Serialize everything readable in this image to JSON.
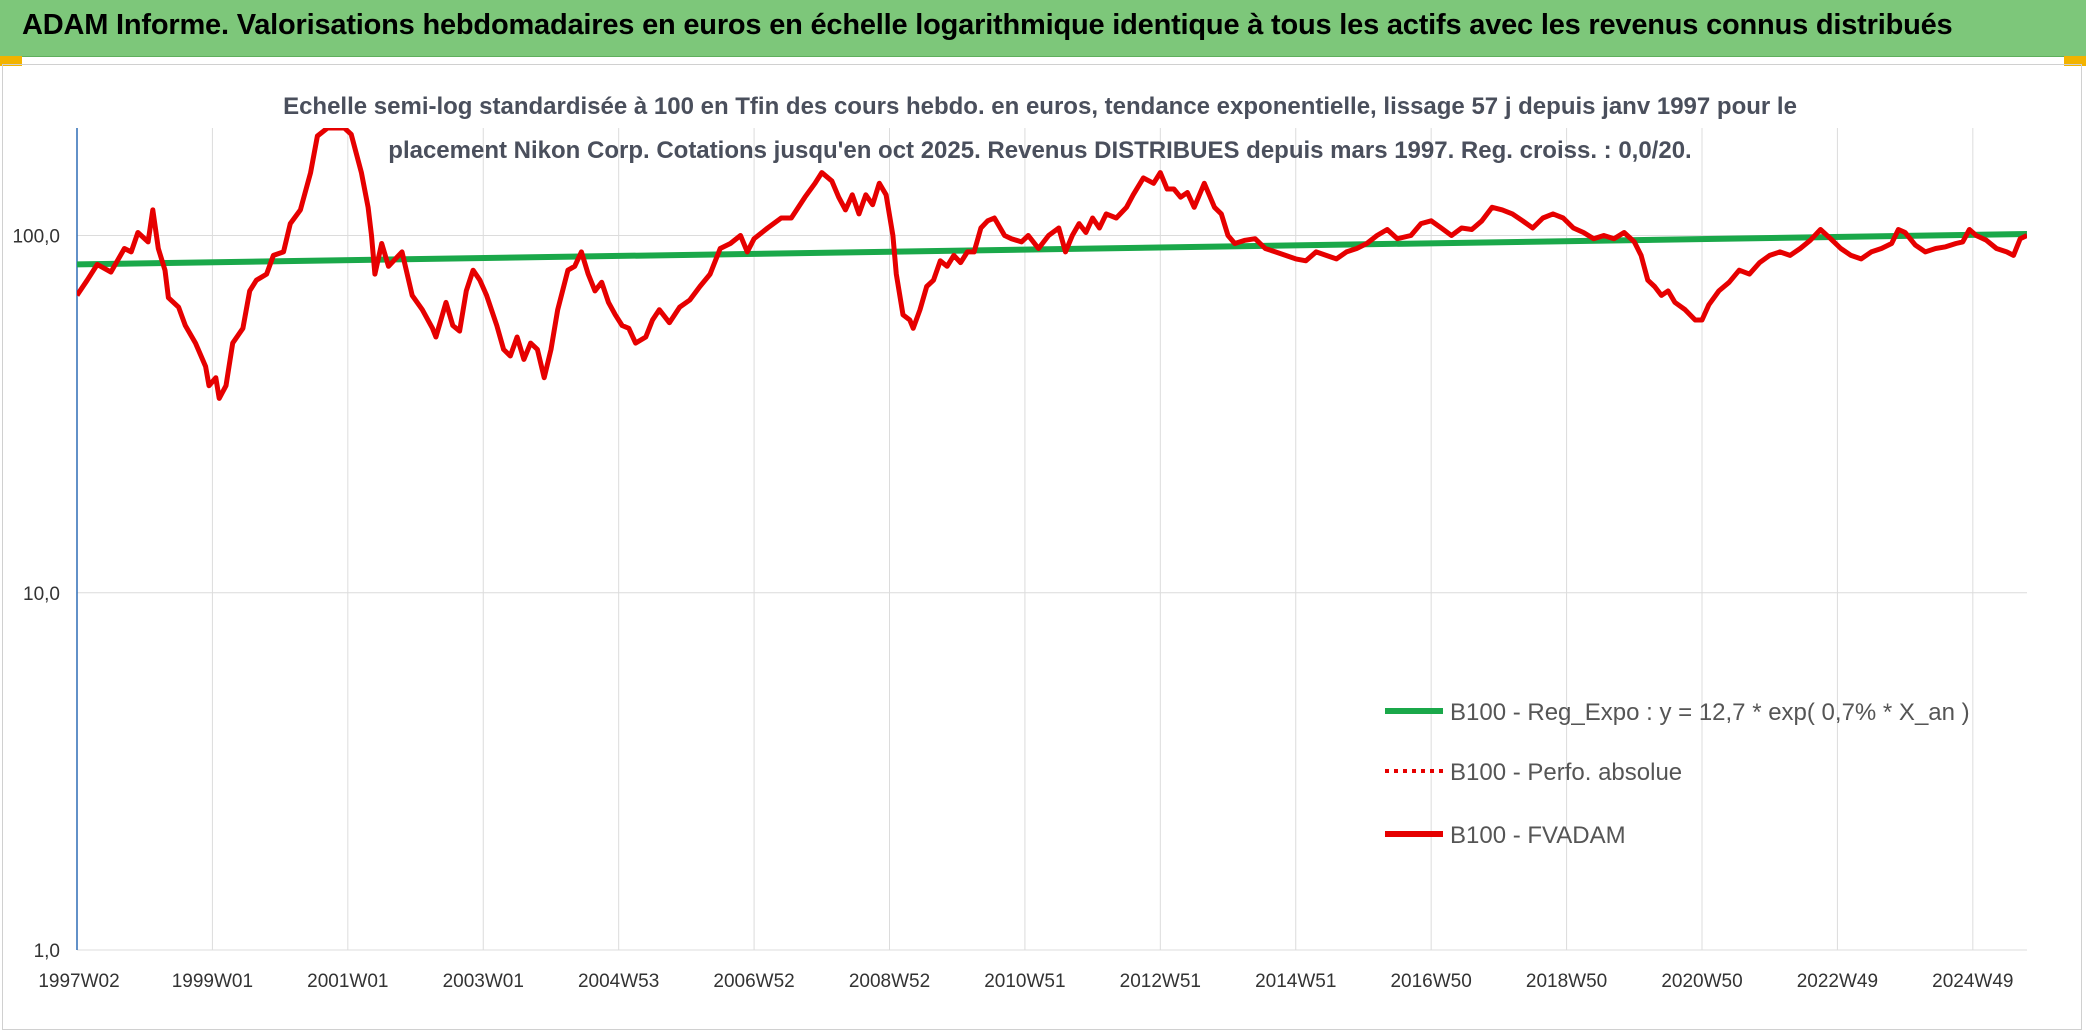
{
  "header": {
    "title": "ADAM Informe. Valorisations hebdomadaires en euros en échelle logarithmique identique à tous les actifs avec les revenus connus distribués"
  },
  "chart_data": {
    "type": "line",
    "title_lines": [
      "Echelle semi-log standardisée à 100 en Tfin des cours hebdo. en euros, tendance exponentielle, lissage 57 j depuis janv 1997 pour le",
      "placement Nikon Corp. Cotations jusqu'en oct 2025. Revenus DISTRIBUES depuis mars 1997. Reg. croiss. : 0,0/20."
    ],
    "y_scale": "log",
    "ylim": [
      1,
      200
    ],
    "y_ticks": [
      1,
      10,
      100
    ],
    "y_tick_labels": [
      "1,0",
      "10,0",
      "100,0"
    ],
    "x_range": [
      1997.0,
      2025.8
    ],
    "x_ticks": [
      {
        "label": "1997W02",
        "x": 1997.0
      },
      {
        "label": "1999W01",
        "x": 1999.0
      },
      {
        "label": "2001W01",
        "x": 2001.0
      },
      {
        "label": "2003W01",
        "x": 2003.0
      },
      {
        "label": "2004W53",
        "x": 2005.0
      },
      {
        "label": "2006W52",
        "x": 2007.0
      },
      {
        "label": "2008W52",
        "x": 2009.0
      },
      {
        "label": "2010W51",
        "x": 2011.0
      },
      {
        "label": "2012W51",
        "x": 2013.0
      },
      {
        "label": "2014W51",
        "x": 2015.0
      },
      {
        "label": "2016W50",
        "x": 2017.0
      },
      {
        "label": "2018W50",
        "x": 2019.0
      },
      {
        "label": "2020W50",
        "x": 2021.0
      },
      {
        "label": "2022W49",
        "x": 2023.0
      },
      {
        "label": "2024W49",
        "x": 2025.0
      }
    ],
    "grid": "vertical and horizontal",
    "legend_position": "bottom-right",
    "series": [
      {
        "name": "B100 - Reg_Expo : y = 12,7 * exp( 0,7% * X_an )",
        "color": "#1aa84a",
        "style": "solid",
        "points": [
          [
            1997.0,
            83
          ],
          [
            2025.8,
            101
          ]
        ]
      },
      {
        "name": "B100 - Perfo. absolue",
        "color": "#e60000",
        "style": "dotted",
        "points": []
      },
      {
        "name": "B100 - FVADAM",
        "color": "#e60000",
        "style": "solid",
        "points": [
          [
            1997.0,
            68
          ],
          [
            1997.15,
            75
          ],
          [
            1997.3,
            83
          ],
          [
            1997.5,
            79
          ],
          [
            1997.7,
            92
          ],
          [
            1997.8,
            90
          ],
          [
            1997.9,
            102
          ],
          [
            1998.05,
            96
          ],
          [
            1998.12,
            118
          ],
          [
            1998.2,
            92
          ],
          [
            1998.3,
            80
          ],
          [
            1998.35,
            67
          ],
          [
            1998.5,
            63
          ],
          [
            1998.6,
            56
          ],
          [
            1998.75,
            50
          ],
          [
            1998.9,
            43
          ],
          [
            1998.95,
            38
          ],
          [
            1999.05,
            40
          ],
          [
            1999.1,
            35
          ],
          [
            1999.2,
            38
          ],
          [
            1999.3,
            50
          ],
          [
            1999.45,
            55
          ],
          [
            1999.55,
            70
          ],
          [
            1999.65,
            75
          ],
          [
            1999.8,
            78
          ],
          [
            1999.9,
            88
          ],
          [
            2000.05,
            90
          ],
          [
            2000.15,
            108
          ],
          [
            2000.3,
            118
          ],
          [
            2000.45,
            150
          ],
          [
            2000.55,
            190
          ],
          [
            2000.7,
            200
          ],
          [
            2000.95,
            200
          ],
          [
            2001.05,
            192
          ],
          [
            2001.2,
            150
          ],
          [
            2001.3,
            120
          ],
          [
            2001.35,
            100
          ],
          [
            2001.4,
            78
          ],
          [
            2001.5,
            95
          ],
          [
            2001.6,
            82
          ],
          [
            2001.8,
            90
          ],
          [
            2001.95,
            68
          ],
          [
            2002.1,
            62
          ],
          [
            2002.25,
            55
          ],
          [
            2002.3,
            52
          ],
          [
            2002.45,
            65
          ],
          [
            2002.55,
            56
          ],
          [
            2002.65,
            54
          ],
          [
            2002.75,
            70
          ],
          [
            2002.85,
            80
          ],
          [
            2002.95,
            75
          ],
          [
            2003.05,
            68
          ],
          [
            2003.2,
            56
          ],
          [
            2003.3,
            48
          ],
          [
            2003.4,
            46
          ],
          [
            2003.5,
            52
          ],
          [
            2003.6,
            45
          ],
          [
            2003.7,
            50
          ],
          [
            2003.8,
            48
          ],
          [
            2003.9,
            40
          ],
          [
            2004.0,
            48
          ],
          [
            2004.1,
            62
          ],
          [
            2004.25,
            80
          ],
          [
            2004.35,
            82
          ],
          [
            2004.45,
            90
          ],
          [
            2004.55,
            78
          ],
          [
            2004.65,
            70
          ],
          [
            2004.75,
            74
          ],
          [
            2004.85,
            65
          ],
          [
            2004.95,
            60
          ],
          [
            2005.05,
            56
          ],
          [
            2005.15,
            55
          ],
          [
            2005.25,
            50
          ],
          [
            2005.4,
            52
          ],
          [
            2005.5,
            58
          ],
          [
            2005.6,
            62
          ],
          [
            2005.75,
            57
          ],
          [
            2005.9,
            63
          ],
          [
            2006.05,
            66
          ],
          [
            2006.2,
            72
          ],
          [
            2006.35,
            78
          ],
          [
            2006.5,
            92
          ],
          [
            2006.65,
            95
          ],
          [
            2006.8,
            100
          ],
          [
            2006.9,
            90
          ],
          [
            2007.0,
            98
          ],
          [
            2007.2,
            105
          ],
          [
            2007.4,
            112
          ],
          [
            2007.55,
            112
          ],
          [
            2007.75,
            128
          ],
          [
            2007.9,
            140
          ],
          [
            2008.0,
            150
          ],
          [
            2008.15,
            142
          ],
          [
            2008.25,
            128
          ],
          [
            2008.35,
            118
          ],
          [
            2008.45,
            130
          ],
          [
            2008.55,
            115
          ],
          [
            2008.65,
            130
          ],
          [
            2008.75,
            122
          ],
          [
            2008.85,
            140
          ],
          [
            2008.95,
            130
          ],
          [
            2009.05,
            100
          ],
          [
            2009.1,
            78
          ],
          [
            2009.2,
            60
          ],
          [
            2009.3,
            58
          ],
          [
            2009.35,
            55
          ],
          [
            2009.45,
            62
          ],
          [
            2009.55,
            72
          ],
          [
            2009.65,
            75
          ],
          [
            2009.75,
            85
          ],
          [
            2009.85,
            82
          ],
          [
            2009.95,
            88
          ],
          [
            2010.05,
            84
          ],
          [
            2010.15,
            90
          ],
          [
            2010.25,
            90
          ],
          [
            2010.35,
            105
          ],
          [
            2010.45,
            110
          ],
          [
            2010.55,
            112
          ],
          [
            2010.7,
            100
          ],
          [
            2010.8,
            98
          ],
          [
            2010.95,
            96
          ],
          [
            2011.05,
            100
          ],
          [
            2011.2,
            92
          ],
          [
            2011.35,
            100
          ],
          [
            2011.5,
            105
          ],
          [
            2011.6,
            90
          ],
          [
            2011.7,
            100
          ],
          [
            2011.8,
            108
          ],
          [
            2011.9,
            102
          ],
          [
            2012.0,
            112
          ],
          [
            2012.1,
            105
          ],
          [
            2012.2,
            115
          ],
          [
            2012.35,
            112
          ],
          [
            2012.5,
            120
          ],
          [
            2012.6,
            130
          ],
          [
            2012.75,
            145
          ],
          [
            2012.9,
            140
          ],
          [
            2013.0,
            150
          ],
          [
            2013.1,
            135
          ],
          [
            2013.2,
            135
          ],
          [
            2013.3,
            128
          ],
          [
            2013.4,
            132
          ],
          [
            2013.5,
            120
          ],
          [
            2013.65,
            140
          ],
          [
            2013.8,
            120
          ],
          [
            2013.9,
            115
          ],
          [
            2014.0,
            100
          ],
          [
            2014.1,
            95
          ],
          [
            2014.25,
            97
          ],
          [
            2014.4,
            98
          ],
          [
            2014.55,
            92
          ],
          [
            2014.7,
            90
          ],
          [
            2014.85,
            88
          ],
          [
            2015.0,
            86
          ],
          [
            2015.15,
            85
          ],
          [
            2015.3,
            90
          ],
          [
            2015.45,
            88
          ],
          [
            2015.6,
            86
          ],
          [
            2015.75,
            90
          ],
          [
            2015.9,
            92
          ],
          [
            2016.05,
            95
          ],
          [
            2016.2,
            100
          ],
          [
            2016.35,
            104
          ],
          [
            2016.5,
            98
          ],
          [
            2016.7,
            100
          ],
          [
            2016.85,
            108
          ],
          [
            2017.0,
            110
          ],
          [
            2017.15,
            105
          ],
          [
            2017.3,
            100
          ],
          [
            2017.45,
            105
          ],
          [
            2017.6,
            104
          ],
          [
            2017.75,
            110
          ],
          [
            2017.9,
            120
          ],
          [
            2018.05,
            118
          ],
          [
            2018.2,
            115
          ],
          [
            2018.35,
            110
          ],
          [
            2018.5,
            105
          ],
          [
            2018.65,
            112
          ],
          [
            2018.8,
            115
          ],
          [
            2018.95,
            112
          ],
          [
            2019.1,
            105
          ],
          [
            2019.25,
            102
          ],
          [
            2019.4,
            98
          ],
          [
            2019.55,
            100
          ],
          [
            2019.7,
            98
          ],
          [
            2019.85,
            102
          ],
          [
            2020.0,
            96
          ],
          [
            2020.1,
            88
          ],
          [
            2020.2,
            75
          ],
          [
            2020.3,
            72
          ],
          [
            2020.4,
            68
          ],
          [
            2020.5,
            70
          ],
          [
            2020.6,
            65
          ],
          [
            2020.75,
            62
          ],
          [
            2020.9,
            58
          ],
          [
            2021.0,
            58
          ],
          [
            2021.1,
            64
          ],
          [
            2021.25,
            70
          ],
          [
            2021.4,
            74
          ],
          [
            2021.55,
            80
          ],
          [
            2021.7,
            78
          ],
          [
            2021.85,
            84
          ],
          [
            2022.0,
            88
          ],
          [
            2022.15,
            90
          ],
          [
            2022.3,
            88
          ],
          [
            2022.45,
            92
          ],
          [
            2022.6,
            97
          ],
          [
            2022.75,
            104
          ],
          [
            2022.9,
            98
          ],
          [
            2023.05,
            92
          ],
          [
            2023.2,
            88
          ],
          [
            2023.35,
            86
          ],
          [
            2023.5,
            90
          ],
          [
            2023.65,
            92
          ],
          [
            2023.8,
            95
          ],
          [
            2023.9,
            104
          ],
          [
            2024.0,
            102
          ],
          [
            2024.15,
            94
          ],
          [
            2024.3,
            90
          ],
          [
            2024.45,
            92
          ],
          [
            2024.6,
            93
          ],
          [
            2024.75,
            95
          ],
          [
            2024.85,
            96
          ],
          [
            2024.95,
            104
          ],
          [
            2025.05,
            100
          ],
          [
            2025.2,
            97
          ],
          [
            2025.35,
            92
          ],
          [
            2025.5,
            90
          ],
          [
            2025.6,
            88
          ],
          [
            2025.7,
            98
          ],
          [
            2025.8,
            100
          ]
        ]
      }
    ]
  }
}
